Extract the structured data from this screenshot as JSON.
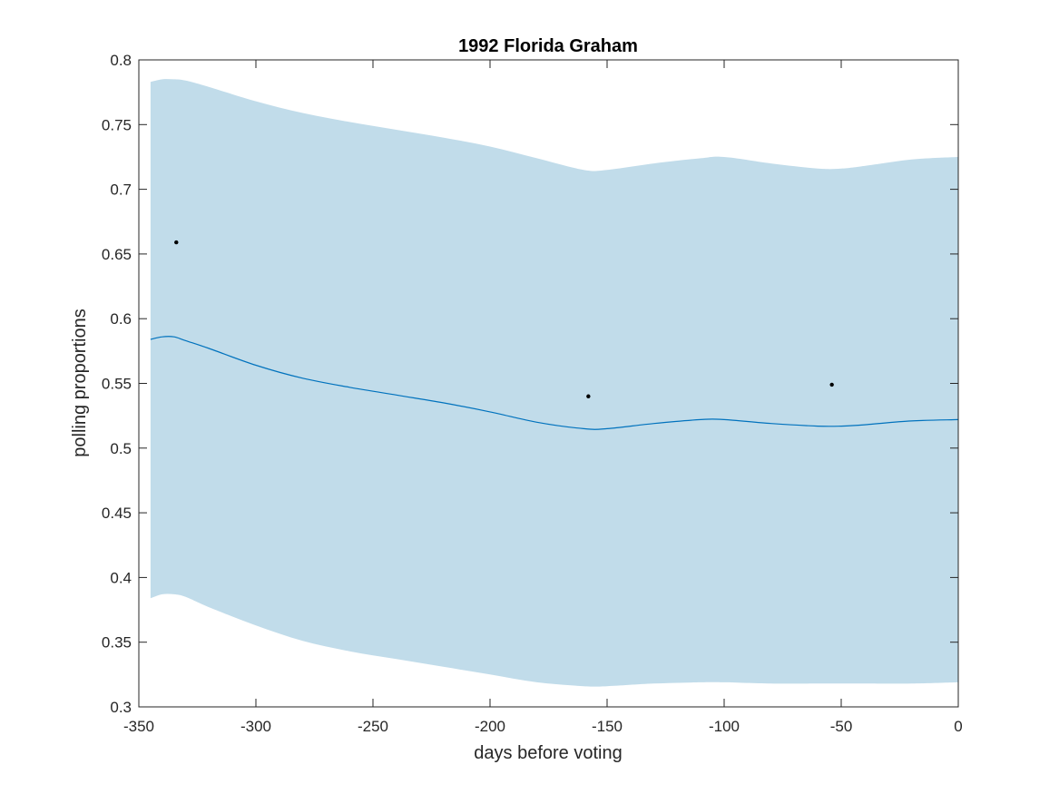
{
  "chart_data": {
    "type": "line",
    "title": "1992 Florida Graham",
    "xlabel": "days before voting",
    "ylabel": "polling proportions",
    "xlim": [
      -350,
      0
    ],
    "ylim": [
      0.3,
      0.8
    ],
    "xticks": [
      -350,
      -300,
      -250,
      -200,
      -150,
      -100,
      -50,
      0
    ],
    "yticks": [
      0.3,
      0.35,
      0.4,
      0.45,
      0.5,
      0.55,
      0.6,
      0.65,
      0.7,
      0.75,
      0.8
    ],
    "grid": false,
    "legend": "none",
    "colors": {
      "band": "#c1dcea",
      "line": "#0072bd",
      "points": "#000000",
      "axes": "#262626"
    },
    "series": [
      {
        "type": "line",
        "x": [
          -345,
          -340,
          -335,
          -330,
          -320,
          -300,
          -280,
          -260,
          -240,
          -220,
          -200,
          -180,
          -160,
          -150,
          -130,
          -110,
          -100,
          -80,
          -60,
          -50,
          -40,
          -20,
          0
        ],
        "y": [
          0.584,
          0.586,
          0.586,
          0.583,
          0.577,
          0.564,
          0.554,
          0.547,
          0.541,
          0.535,
          0.528,
          0.52,
          0.515,
          0.515,
          0.519,
          0.522,
          0.522,
          0.519,
          0.517,
          0.517,
          0.518,
          0.521,
          0.522
        ]
      },
      {
        "type": "band",
        "x": [
          -345,
          -340,
          -335,
          -330,
          -320,
          -300,
          -280,
          -260,
          -240,
          -220,
          -200,
          -180,
          -160,
          -150,
          -130,
          -110,
          -100,
          -80,
          -60,
          -50,
          -40,
          -20,
          0
        ],
        "upper": [
          0.783,
          0.785,
          0.785,
          0.784,
          0.779,
          0.768,
          0.759,
          0.752,
          0.746,
          0.74,
          0.733,
          0.724,
          0.715,
          0.715,
          0.72,
          0.724,
          0.725,
          0.72,
          0.716,
          0.716,
          0.718,
          0.723,
          0.725
        ],
        "lower": [
          0.384,
          0.387,
          0.387,
          0.385,
          0.377,
          0.363,
          0.351,
          0.343,
          0.337,
          0.331,
          0.325,
          0.319,
          0.316,
          0.316,
          0.318,
          0.319,
          0.319,
          0.318,
          0.318,
          0.318,
          0.318,
          0.318,
          0.319
        ]
      },
      {
        "type": "scatter",
        "x": [
          -334,
          -158,
          -54
        ],
        "y": [
          0.659,
          0.54,
          0.549
        ]
      }
    ]
  }
}
